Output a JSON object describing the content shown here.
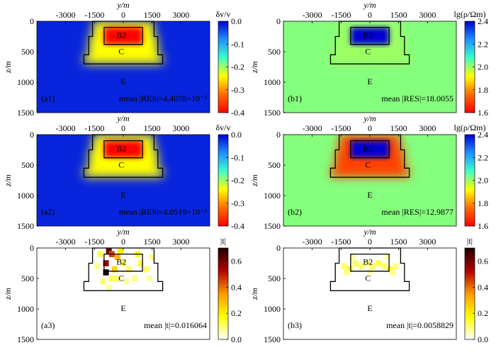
{
  "figure": {
    "x_axis_label": "y/m",
    "y_axis_label": "z/m",
    "x_ticks": [
      -3000,
      -1500,
      0,
      1500,
      3000
    ],
    "y_ticks": [
      0,
      500,
      1000,
      1500
    ],
    "xlim": [
      -4500,
      4500
    ],
    "ylim": [
      0,
      1500
    ],
    "region_labels": [
      "B2",
      "C",
      "E"
    ]
  },
  "colorbars": {
    "velocity": {
      "title": "δv/v",
      "ticks": [
        "0.0",
        "-0.1",
        "-0.2",
        "-0.3",
        "-0.4"
      ],
      "range": [
        -0.4,
        0.0
      ]
    },
    "resistivity": {
      "title": "lg(ρ/Ωm)",
      "ticks": [
        "2.4",
        "2.2",
        "2.0",
        "1.8",
        "1.6"
      ],
      "range": [
        1.6,
        2.4
      ]
    },
    "resolution_a": {
      "title": "|t|",
      "ticks": [
        "0.6",
        "0.4",
        "0.2",
        "0.0"
      ],
      "range": [
        0,
        0.7
      ]
    },
    "resolution_b": {
      "title": "|t|",
      "ticks": [
        "0.6",
        "0.4",
        "0.2",
        "0.0"
      ],
      "range": [
        0,
        0.7
      ]
    }
  },
  "colors": {
    "jet_low": "#00007f",
    "jet_high": "#7f0000",
    "heat_low": "#ffffff",
    "heat_high": "#000000",
    "outline": "#000000"
  },
  "chart_data": [
    {
      "id": "a1",
      "type": "heatmap",
      "panel_label": "(a1)",
      "variable": "δv/v",
      "annotation": "mean |RES|=4.4078×10⁻²",
      "background": -0.02,
      "B2": -0.4,
      "C": -0.24,
      "colorbar": "velocity"
    },
    {
      "id": "b1",
      "type": "heatmap",
      "panel_label": "(b1)",
      "variable": "lg(ρ/Ωm)",
      "annotation": "mean |RES|=18.0055",
      "background": 2.02,
      "B2": 2.4,
      "C": 2.0,
      "colorbar": "resistivity"
    },
    {
      "id": "a2",
      "type": "heatmap",
      "panel_label": "(a2)",
      "variable": "δv/v",
      "annotation": "mean |RES|=4.0519×10⁻²",
      "background": -0.02,
      "B2": -0.4,
      "C": -0.24,
      "colorbar": "velocity"
    },
    {
      "id": "b2",
      "type": "heatmap",
      "panel_label": "(b2)",
      "variable": "lg(ρ/Ωm)",
      "annotation": "mean |RES|=12.9877",
      "background": 2.02,
      "B2": 2.4,
      "C": 1.7,
      "colorbar": "resistivity"
    },
    {
      "id": "a3",
      "type": "heatmap",
      "panel_label": "(a3)",
      "variable": "|t|",
      "annotation": "mean |t|=0.016064",
      "background": 0.0,
      "colorbar": "resolution_a",
      "cells": [
        [
          -750,
          50,
          0.62
        ],
        [
          -600,
          100,
          0.45
        ],
        [
          -900,
          250,
          0.55
        ],
        [
          -900,
          400,
          0.7
        ],
        [
          -300,
          150,
          0.3
        ],
        [
          -450,
          350,
          0.25
        ],
        [
          -150,
          50,
          0.2
        ],
        [
          -1200,
          100,
          0.12
        ],
        [
          -1350,
          300,
          0.08
        ],
        [
          750,
          100,
          0.15
        ],
        [
          900,
          250,
          0.12
        ],
        [
          1200,
          350,
          0.1
        ],
        [
          600,
          500,
          0.08
        ],
        [
          -300,
          500,
          0.1
        ],
        [
          -600,
          500,
          0.12
        ],
        [
          300,
          350,
          0.1
        ],
        [
          1500,
          150,
          0.08
        ],
        [
          -1050,
          550,
          0.1
        ],
        [
          150,
          550,
          0.07
        ],
        [
          1350,
          500,
          0.06
        ],
        [
          -750,
          650,
          0.06
        ],
        [
          0,
          250,
          0.12
        ]
      ]
    },
    {
      "id": "b3",
      "type": "heatmap",
      "panel_label": "(b3)",
      "variable": "|t|",
      "annotation": "mean |t|=0.0058829",
      "background": 0.0,
      "colorbar": "resolution_b",
      "cells": [
        [
          -1350,
          300,
          0.1
        ],
        [
          -1050,
          350,
          0.15
        ],
        [
          -750,
          250,
          0.12
        ],
        [
          -450,
          300,
          0.1
        ],
        [
          -150,
          250,
          0.08
        ],
        [
          150,
          300,
          0.1
        ],
        [
          450,
          250,
          0.12
        ],
        [
          750,
          300,
          0.1
        ],
        [
          1050,
          350,
          0.14
        ],
        [
          1350,
          300,
          0.08
        ],
        [
          -900,
          150,
          0.06
        ],
        [
          900,
          150,
          0.06
        ],
        [
          -1200,
          400,
          0.08
        ],
        [
          1200,
          400,
          0.08
        ],
        [
          0,
          400,
          0.05
        ]
      ]
    }
  ]
}
